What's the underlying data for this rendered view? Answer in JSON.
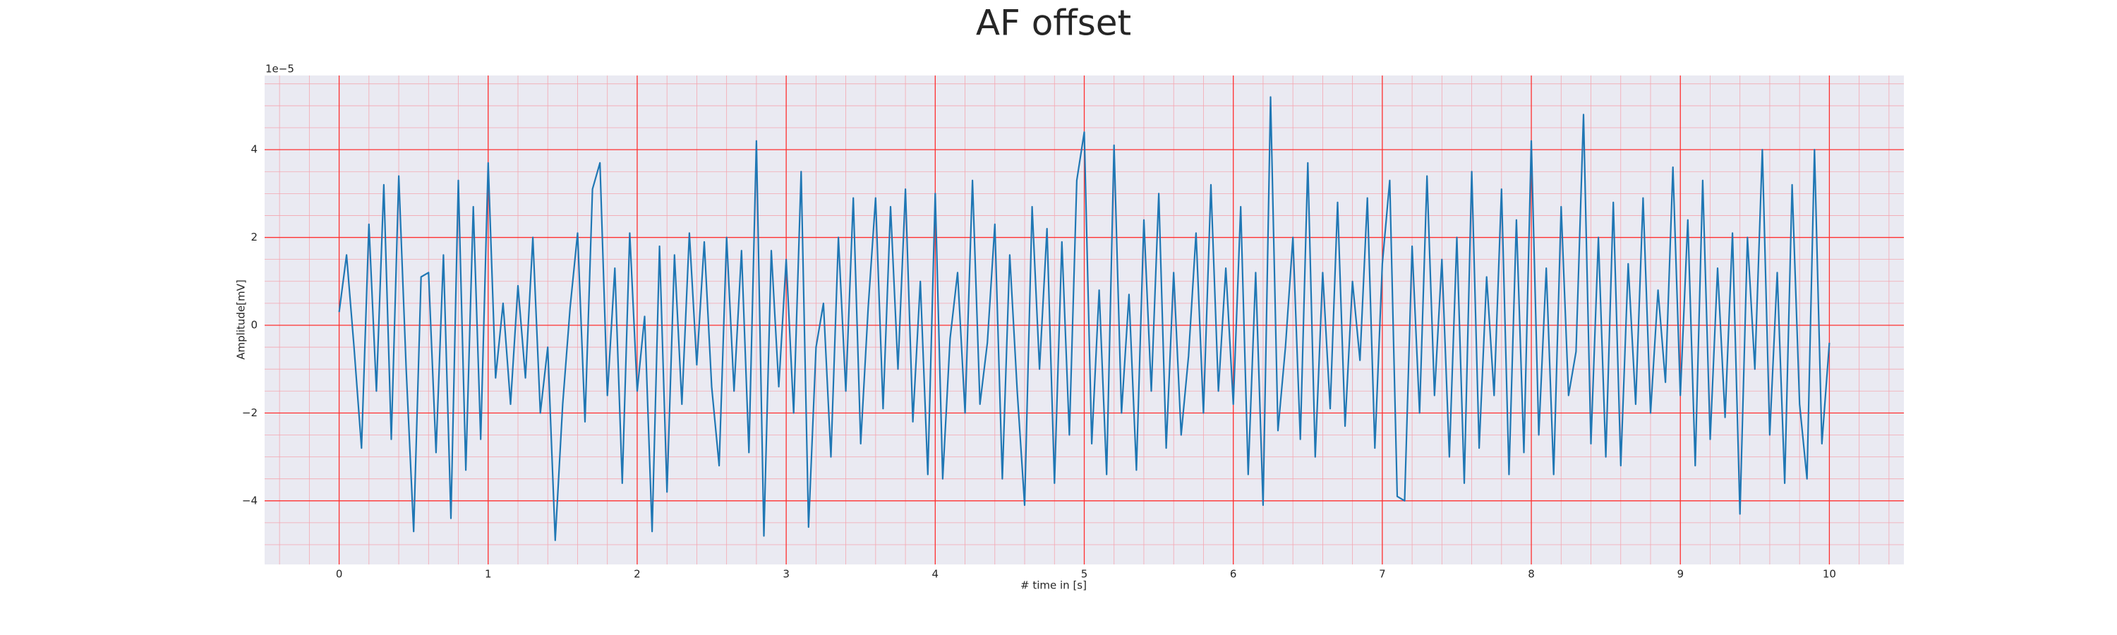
{
  "chart_data": {
    "type": "line",
    "title": "AF offset",
    "xlabel": "# time in [s]",
    "ylabel": "Amplitude[mV]",
    "y_offset_label": "1e−5",
    "xlim": [
      -0.5,
      10.5
    ],
    "ylim": [
      -5.45,
      5.69
    ],
    "xticks": [
      0,
      1,
      2,
      3,
      4,
      5,
      6,
      7,
      8,
      9,
      10
    ],
    "yticks": [
      {
        "value": -4,
        "label": "−4"
      },
      {
        "value": -2,
        "label": "−2"
      },
      0,
      2,
      4
    ],
    "grid": true,
    "minor_grid": true,
    "background": "#eaeaf2",
    "grid_color": "#ff3030",
    "minor_grid_color": "#f4a6b0",
    "x": [
      0,
      0.05,
      0.1,
      0.15,
      0.2,
      0.25,
      0.3,
      0.35,
      0.4,
      0.45,
      0.5,
      0.55,
      0.6,
      0.65,
      0.7,
      0.75,
      0.8,
      0.85,
      0.9,
      0.95,
      1,
      1.05,
      1.1,
      1.15,
      1.2,
      1.25,
      1.3,
      1.35,
      1.4,
      1.45,
      1.5,
      1.55,
      1.6,
      1.65,
      1.7,
      1.75,
      1.8,
      1.85,
      1.9,
      1.95,
      2,
      2.05,
      2.1,
      2.15,
      2.2,
      2.25,
      2.3,
      2.35,
      2.4,
      2.45,
      2.5,
      2.55,
      2.6,
      2.65,
      2.7,
      2.75,
      2.8,
      2.85,
      2.9,
      2.95,
      3,
      3.05,
      3.1,
      3.15,
      3.2,
      3.25,
      3.3,
      3.35,
      3.4,
      3.45,
      3.5,
      3.55,
      3.6,
      3.65,
      3.7,
      3.75,
      3.8,
      3.85,
      3.9,
      3.95,
      4,
      4.05,
      4.1,
      4.15,
      4.2,
      4.25,
      4.3,
      4.35,
      4.4,
      4.45,
      4.5,
      4.55,
      4.6,
      4.65,
      4.7,
      4.75,
      4.8,
      4.85,
      4.9,
      4.95,
      5,
      5.05,
      5.1,
      5.15,
      5.2,
      5.25,
      5.3,
      5.35,
      5.4,
      5.45,
      5.5,
      5.55,
      5.6,
      5.65,
      5.7,
      5.75,
      5.8,
      5.85,
      5.9,
      5.95,
      6,
      6.05,
      6.1,
      6.15,
      6.2,
      6.25,
      6.3,
      6.35,
      6.4,
      6.45,
      6.5,
      6.55,
      6.6,
      6.65,
      6.7,
      6.75,
      6.8,
      6.85,
      6.9,
      6.95,
      7,
      7.05,
      7.1,
      7.15,
      7.2,
      7.25,
      7.3,
      7.35,
      7.4,
      7.45,
      7.5,
      7.55,
      7.6,
      7.65,
      7.7,
      7.75,
      7.8,
      7.85,
      7.9,
      7.95,
      8,
      8.05,
      8.1,
      8.15,
      8.2,
      8.25,
      8.3,
      8.35,
      8.4,
      8.45,
      8.5,
      8.55,
      8.6,
      8.65,
      8.7,
      8.75,
      8.8,
      8.85,
      8.9,
      8.95,
      9,
      9.05,
      9.1,
      9.15,
      9.2,
      9.25,
      9.3,
      9.35,
      9.4,
      9.45,
      9.5,
      9.55,
      9.6,
      9.65,
      9.7,
      9.75,
      9.8,
      9.85,
      9.9,
      9.95,
      10
    ],
    "series": [
      {
        "color": "#1f77b4",
        "values": [
          0.3,
          1.6,
          -0.5,
          -2.8,
          2.3,
          -1.5,
          3.2,
          -2.6,
          3.4,
          -1.0,
          -4.7,
          1.1,
          1.2,
          -2.9,
          1.6,
          -4.4,
          3.3,
          -3.3,
          2.7,
          -2.6,
          3.7,
          -1.2,
          0.5,
          -1.8,
          0.9,
          -1.2,
          2.0,
          -2.0,
          -0.5,
          -4.9,
          -1.8,
          0.4,
          2.1,
          -2.2,
          3.1,
          3.7,
          -1.6,
          1.3,
          -3.6,
          2.1,
          -1.5,
          0.2,
          -4.7,
          1.8,
          -3.8,
          1.6,
          -1.8,
          2.1,
          -0.9,
          1.9,
          -1.4,
          -3.2,
          2.0,
          -1.5,
          1.7,
          -2.9,
          4.2,
          -4.8,
          1.7,
          -1.4,
          1.5,
          -2.0,
          3.5,
          -4.6,
          -0.5,
          0.5,
          -3.0,
          2.0,
          -1.5,
          2.9,
          -2.7,
          0.4,
          2.9,
          -1.9,
          2.7,
          -1.0,
          3.1,
          -2.2,
          1.0,
          -3.4,
          3.0,
          -3.5,
          -0.3,
          1.2,
          -2.0,
          3.3,
          -1.8,
          -0.4,
          2.3,
          -3.5,
          1.6,
          -1.5,
          -4.1,
          2.7,
          -1.0,
          2.2,
          -3.6,
          1.9,
          -2.5,
          3.3,
          4.4,
          -2.7,
          0.8,
          -3.4,
          4.1,
          -2.0,
          0.7,
          -3.3,
          2.4,
          -1.5,
          3.0,
          -2.8,
          1.2,
          -2.5,
          -0.7,
          2.1,
          -2.0,
          3.2,
          -1.5,
          1.3,
          -1.8,
          2.7,
          -3.4,
          1.2,
          -4.1,
          5.2,
          -2.4,
          -0.5,
          2.0,
          -2.6,
          3.7,
          -3.0,
          1.2,
          -1.9,
          2.8,
          -2.3,
          1.0,
          -0.8,
          2.9,
          -2.8,
          1.4,
          3.3,
          -3.9,
          -4.0,
          1.8,
          -2.0,
          3.4,
          -1.6,
          1.5,
          -3.0,
          2.0,
          -3.6,
          3.5,
          -2.8,
          1.1,
          -1.6,
          3.1,
          -3.4,
          2.4,
          -2.9,
          4.2,
          -2.5,
          1.3,
          -3.4,
          2.7,
          -1.6,
          -0.6,
          4.8,
          -2.7,
          2.0,
          -3.0,
          2.8,
          -3.2,
          1.4,
          -1.8,
          2.9,
          -2.0,
          0.8,
          -1.3,
          3.6,
          -1.6,
          2.4,
          -3.2,
          3.3,
          -2.6,
          1.3,
          -2.1,
          2.1,
          -4.3,
          2.0,
          -1.0,
          4.0,
          -2.5,
          1.2,
          -3.6,
          3.2,
          -1.8,
          -3.5,
          4.0,
          -2.7,
          -0.4
        ]
      }
    ]
  }
}
